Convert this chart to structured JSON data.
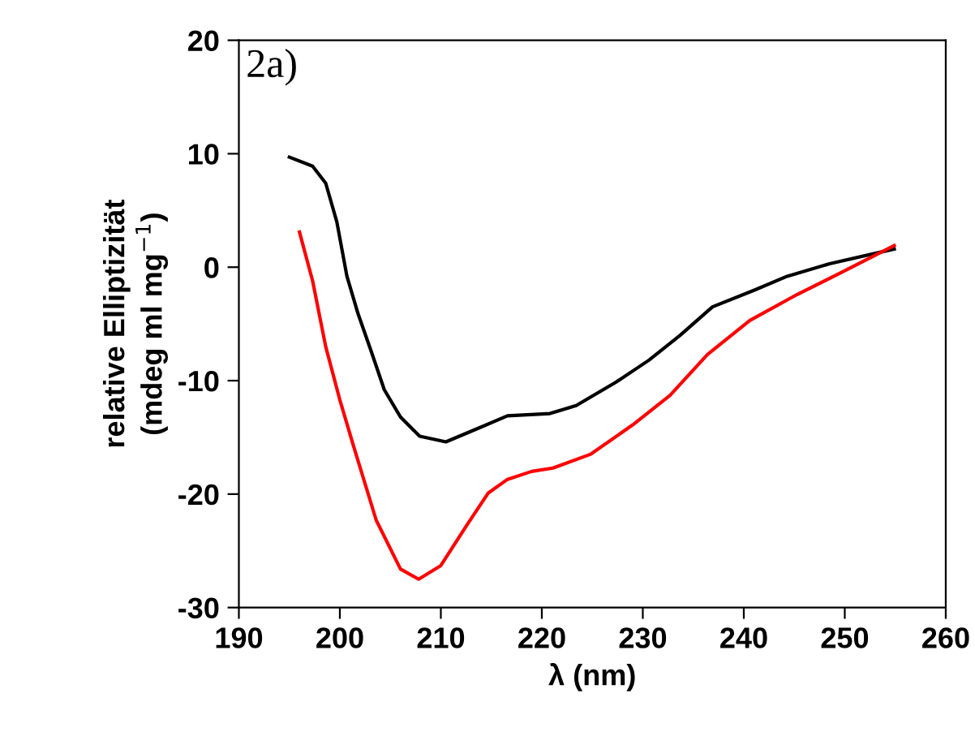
{
  "chart_data": {
    "type": "line",
    "xlabel": "λ (nm)",
    "ylabel": "relative Elliptizität\n(mdeg ml mg$^{−1}$)",
    "annotations": [
      "2a)"
    ],
    "xlim": [
      190,
      260
    ],
    "xticks": [
      190,
      200,
      210,
      220,
      230,
      240,
      250,
      260
    ],
    "ylim": [
      -30,
      20
    ],
    "yticks": [
      -30,
      -20,
      -10,
      0,
      10,
      20
    ],
    "grid": false,
    "legend": false,
    "marker": "none",
    "line_style": "solid",
    "series": [
      {
        "color": "#000000",
        "x": [
          195.0,
          197.3,
          198.6,
          199.7,
          200.7,
          201.8,
          203.1,
          204.4,
          206.0,
          207.9,
          210.5,
          213.7,
          216.6,
          220.8,
          223.4,
          227.4,
          230.6,
          233.7,
          236.9,
          241.1,
          244.3,
          248.5,
          254.9
        ],
        "values": [
          9.7,
          8.9,
          7.4,
          4.0,
          -0.8,
          -4.1,
          -7.4,
          -10.8,
          -13.2,
          -14.9,
          -15.4,
          -14.2,
          -13.1,
          -12.9,
          -12.2,
          -10.1,
          -8.2,
          -6.0,
          -3.5,
          -2.0,
          -0.8,
          0.3,
          1.6
        ]
      },
      {
        "color": "#ff0000",
        "x": [
          196.0,
          197.3,
          198.6,
          200.0,
          201.3,
          203.6,
          206.0,
          207.8,
          210.0,
          212.6,
          214.7,
          216.6,
          219.0,
          221.1,
          224.8,
          229.0,
          232.7,
          236.4,
          240.6,
          245.3,
          249.6,
          254.9
        ],
        "values": [
          3.1,
          -1.2,
          -7.0,
          -11.7,
          -15.6,
          -22.3,
          -26.6,
          -27.5,
          -26.3,
          -22.7,
          -19.9,
          -18.7,
          -18.0,
          -17.7,
          -16.5,
          -13.9,
          -11.3,
          -7.7,
          -4.7,
          -2.4,
          -0.5,
          1.9
        ]
      }
    ]
  }
}
